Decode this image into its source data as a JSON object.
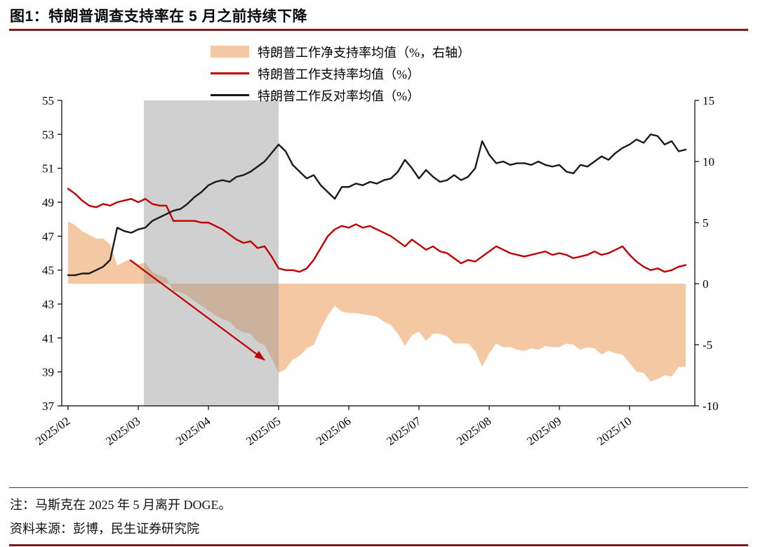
{
  "page": {
    "title": "图1：特朗普调查支持率在 5 月之前持续下降",
    "note": "注：马斯克在 2025 年 5 月离开 DOGE。",
    "source": "资料来源：彭博，民生证券研究院",
    "accent_color": "#7E1B1B"
  },
  "legend": [
    {
      "label": "特朗普工作净支持率均值（%，右轴）",
      "type": "area",
      "color": "#F5C8A4"
    },
    {
      "label": "特朗普工作支持率均值（%）",
      "type": "line",
      "color": "#C00000"
    },
    {
      "label": "特朗普工作反对率均值（%）",
      "type": "line",
      "color": "#1A1A1A"
    }
  ],
  "chart_data": {
    "type": "line",
    "title": "图1：特朗普调查支持率在 5 月之前持续下降",
    "x_unit": "months since 2025/02",
    "x_tick_labels": [
      "2025/02",
      "2025/03",
      "2025/04",
      "2025/05",
      "2025/06",
      "2025/07",
      "2025/08",
      "2025/09",
      "2025/10"
    ],
    "left_axis": {
      "min": 37,
      "max": 55,
      "ticks": [
        37,
        39,
        41,
        43,
        45,
        47,
        49,
        51,
        53,
        55
      ]
    },
    "right_axis": {
      "min": -10,
      "max": 15,
      "ticks": [
        -10,
        -5,
        0,
        5,
        10,
        15
      ]
    },
    "grid": false,
    "shaded_region": {
      "from_x": 1.08,
      "to_x": 3.0,
      "color": "rgba(150,150,150,0.45)",
      "meaning": "2025/03 to 2025/05"
    },
    "annotation_arrow": {
      "from": [
        0.88,
        45.6
      ],
      "to": [
        2.8,
        39.7
      ],
      "axis": "left",
      "color": "#C00000"
    },
    "x": [
      0,
      0.1,
      0.2,
      0.3,
      0.4,
      0.5,
      0.6,
      0.7,
      0.8,
      0.9,
      1,
      1.1,
      1.2,
      1.3,
      1.4,
      1.5,
      1.6,
      1.7,
      1.8,
      1.9,
      2,
      2.1,
      2.2,
      2.3,
      2.4,
      2.5,
      2.6,
      2.7,
      2.8,
      2.9,
      3,
      3.1,
      3.2,
      3.3,
      3.4,
      3.5,
      3.6,
      3.7,
      3.8,
      3.9,
      4,
      4.1,
      4.2,
      4.3,
      4.4,
      4.5,
      4.6,
      4.7,
      4.8,
      4.9,
      5,
      5.1,
      5.2,
      5.3,
      5.4,
      5.5,
      5.6,
      5.7,
      5.8,
      5.9,
      6,
      6.1,
      6.2,
      6.3,
      6.4,
      6.5,
      6.6,
      6.7,
      6.8,
      6.9,
      7,
      7.1,
      7.2,
      7.3,
      7.4,
      7.5,
      7.6,
      7.7,
      7.8,
      7.9,
      8,
      8.1,
      8.2,
      8.3,
      8.4,
      8.5,
      8.6,
      8.7,
      8.8
    ],
    "series": [
      {
        "role": "net",
        "name": "特朗普工作净支持率均值（%，右轴）",
        "axis": "right",
        "type": "area",
        "color": "#F5C8A4",
        "values": [
          5.1,
          4.8,
          4.3,
          4.0,
          3.7,
          3.7,
          3.2,
          1.5,
          1.8,
          2.0,
          1.6,
          1.7,
          1.0,
          0.7,
          0.5,
          -0.6,
          -0.7,
          -1.0,
          -1.4,
          -1.8,
          -2.2,
          -2.6,
          -2.9,
          -3.1,
          -3.7,
          -4.0,
          -4.1,
          -4.8,
          -5.0,
          -6.1,
          -7.3,
          -7.0,
          -6.2,
          -5.9,
          -5.3,
          -5.0,
          -3.7,
          -2.6,
          -1.8,
          -2.3,
          -2.4,
          -2.4,
          -2.5,
          -2.6,
          -2.7,
          -3.1,
          -3.4,
          -4.1,
          -5.1,
          -4.2,
          -3.9,
          -4.7,
          -4.1,
          -4.1,
          -4.3,
          -4.9,
          -4.9,
          -4.9,
          -5.5,
          -6.8,
          -5.7,
          -4.9,
          -5.2,
          -5.2,
          -5.4,
          -5.5,
          -5.3,
          -5.4,
          -5.1,
          -5.2,
          -5.2,
          -4.9,
          -5.0,
          -5.4,
          -5.2,
          -5.3,
          -5.8,
          -5.5,
          -5.7,
          -5.8,
          -6.5,
          -7.2,
          -7.3,
          -8.0,
          -7.8,
          -7.5,
          -7.6,
          -6.8,
          -6.8
        ]
      },
      {
        "role": "approval",
        "name": "特朗普工作支持率均值（%）",
        "axis": "left",
        "type": "line",
        "color": "#C00000",
        "values": [
          49.8,
          49.5,
          49.1,
          48.8,
          48.7,
          48.9,
          48.8,
          49.0,
          49.1,
          49.2,
          49.0,
          49.2,
          48.9,
          48.8,
          48.8,
          47.9,
          47.9,
          47.9,
          47.9,
          47.8,
          47.8,
          47.6,
          47.4,
          47.1,
          46.8,
          46.6,
          46.7,
          46.3,
          46.4,
          45.8,
          45.1,
          45.0,
          45.0,
          44.9,
          45.1,
          45.6,
          46.3,
          47.0,
          47.4,
          47.6,
          47.5,
          47.7,
          47.5,
          47.6,
          47.4,
          47.2,
          47.0,
          46.7,
          46.4,
          46.8,
          46.5,
          46.2,
          46.4,
          46.1,
          46.0,
          45.7,
          45.4,
          45.6,
          45.5,
          45.8,
          46.1,
          46.4,
          46.2,
          46.0,
          45.9,
          45.8,
          45.9,
          46.0,
          46.1,
          45.9,
          46.0,
          45.9,
          45.7,
          45.8,
          45.9,
          46.1,
          45.9,
          46.0,
          46.2,
          46.4,
          45.9,
          45.5,
          45.2,
          45.0,
          45.1,
          44.9,
          45.0,
          45.2,
          45.3
        ]
      },
      {
        "role": "disapproval",
        "name": "特朗普工作反对率均值（%）",
        "axis": "left",
        "type": "line",
        "color": "#1A1A1A",
        "values": [
          44.7,
          44.7,
          44.8,
          44.8,
          45.0,
          45.2,
          45.6,
          47.5,
          47.3,
          47.2,
          47.4,
          47.5,
          47.9,
          48.1,
          48.3,
          48.5,
          48.6,
          48.9,
          49.3,
          49.6,
          50.0,
          50.2,
          50.3,
          50.2,
          50.5,
          50.6,
          50.8,
          51.1,
          51.4,
          51.9,
          52.4,
          52.0,
          51.2,
          50.8,
          50.4,
          50.6,
          50.0,
          49.6,
          49.2,
          49.9,
          49.9,
          50.1,
          50.0,
          50.2,
          50.1,
          50.3,
          50.4,
          50.8,
          51.5,
          51.0,
          50.4,
          50.9,
          50.5,
          50.2,
          50.3,
          50.6,
          50.3,
          50.5,
          51.0,
          52.6,
          51.8,
          51.3,
          51.4,
          51.2,
          51.3,
          51.3,
          51.2,
          51.4,
          51.2,
          51.1,
          51.2,
          50.8,
          50.7,
          51.2,
          51.1,
          51.4,
          51.7,
          51.5,
          51.9,
          52.2,
          52.4,
          52.7,
          52.5,
          53.0,
          52.9,
          52.4,
          52.6,
          52.0,
          52.1
        ]
      }
    ]
  }
}
